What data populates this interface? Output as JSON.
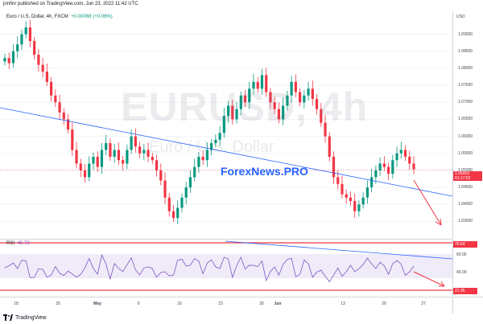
{
  "publisher_line": "jonfinr published on TradingView.com, Jun 23, 2022 11:42 UTC",
  "legend": {
    "symbol_desc": "Euro / U.S. Dollar, 4h, FXCM",
    "change": "+0.00068 (+0.06%)"
  },
  "watermark": {
    "symbol": "EURUSD, 4h",
    "description": "Euro / U.S. Dollar"
  },
  "brand_overlay": "ForexNews.PRO",
  "price_axis": {
    "currency": "USD",
    "labels": [
      "1.09000",
      "1.08500",
      "1.08000",
      "1.07500",
      "1.07000",
      "1.06500",
      "1.06000",
      "1.05500",
      "1.05000",
      "1.04500",
      "1.04000",
      "1.03500"
    ],
    "current_price": "1.05003",
    "countdown": "01:17:52"
  },
  "rsi": {
    "label": "RSI",
    "value": "45.73",
    "upper_tag": "75.64",
    "lower_tag": "21.95",
    "axis_labels": [
      "60.00",
      "40.00"
    ]
  },
  "time_axis": [
    "18",
    "25",
    "May",
    "9",
    "16",
    "23",
    "30",
    "Jun",
    "13",
    "20",
    "27"
  ],
  "footer": {
    "brand": "TradingView"
  },
  "colors": {
    "up": "#089981",
    "down": "#f23645",
    "trendline": "#2962ff",
    "rsi_line": "#7e57c2",
    "arrow": "#f23645"
  },
  "chart_data": {
    "type": "candlestick",
    "title": "Euro / U.S. Dollar, 4h, FXCM",
    "ylim": [
      1.0325,
      1.0925
    ],
    "closes": [
      1.083,
      1.0815,
      1.085,
      1.087,
      1.09,
      1.092,
      1.088,
      1.084,
      1.081,
      1.079,
      1.076,
      1.072,
      1.07,
      1.067,
      1.065,
      1.062,
      1.056,
      1.052,
      1.05,
      1.048,
      1.052,
      1.054,
      1.051,
      1.056,
      1.058,
      1.054,
      1.056,
      1.053,
      1.052,
      1.056,
      1.06,
      1.057,
      1.055,
      1.056,
      1.054,
      1.053,
      1.05,
      1.047,
      1.042,
      1.038,
      1.036,
      1.039,
      1.042,
      1.045,
      1.048,
      1.051,
      1.054,
      1.053,
      1.056,
      1.058,
      1.059,
      1.061,
      1.066,
      1.069,
      1.065,
      1.068,
      1.072,
      1.07,
      1.074,
      1.076,
      1.074,
      1.078,
      1.073,
      1.07,
      1.068,
      1.065,
      1.069,
      1.072,
      1.076,
      1.073,
      1.07,
      1.072,
      1.074,
      1.071,
      1.068,
      1.064,
      1.06,
      1.054,
      1.048,
      1.046,
      1.043,
      1.042,
      1.041,
      1.038,
      1.04,
      1.042,
      1.045,
      1.048,
      1.05,
      1.052,
      1.051,
      1.049,
      1.053,
      1.055,
      1.056,
      1.054,
      1.052,
      1.0503
    ]
  }
}
